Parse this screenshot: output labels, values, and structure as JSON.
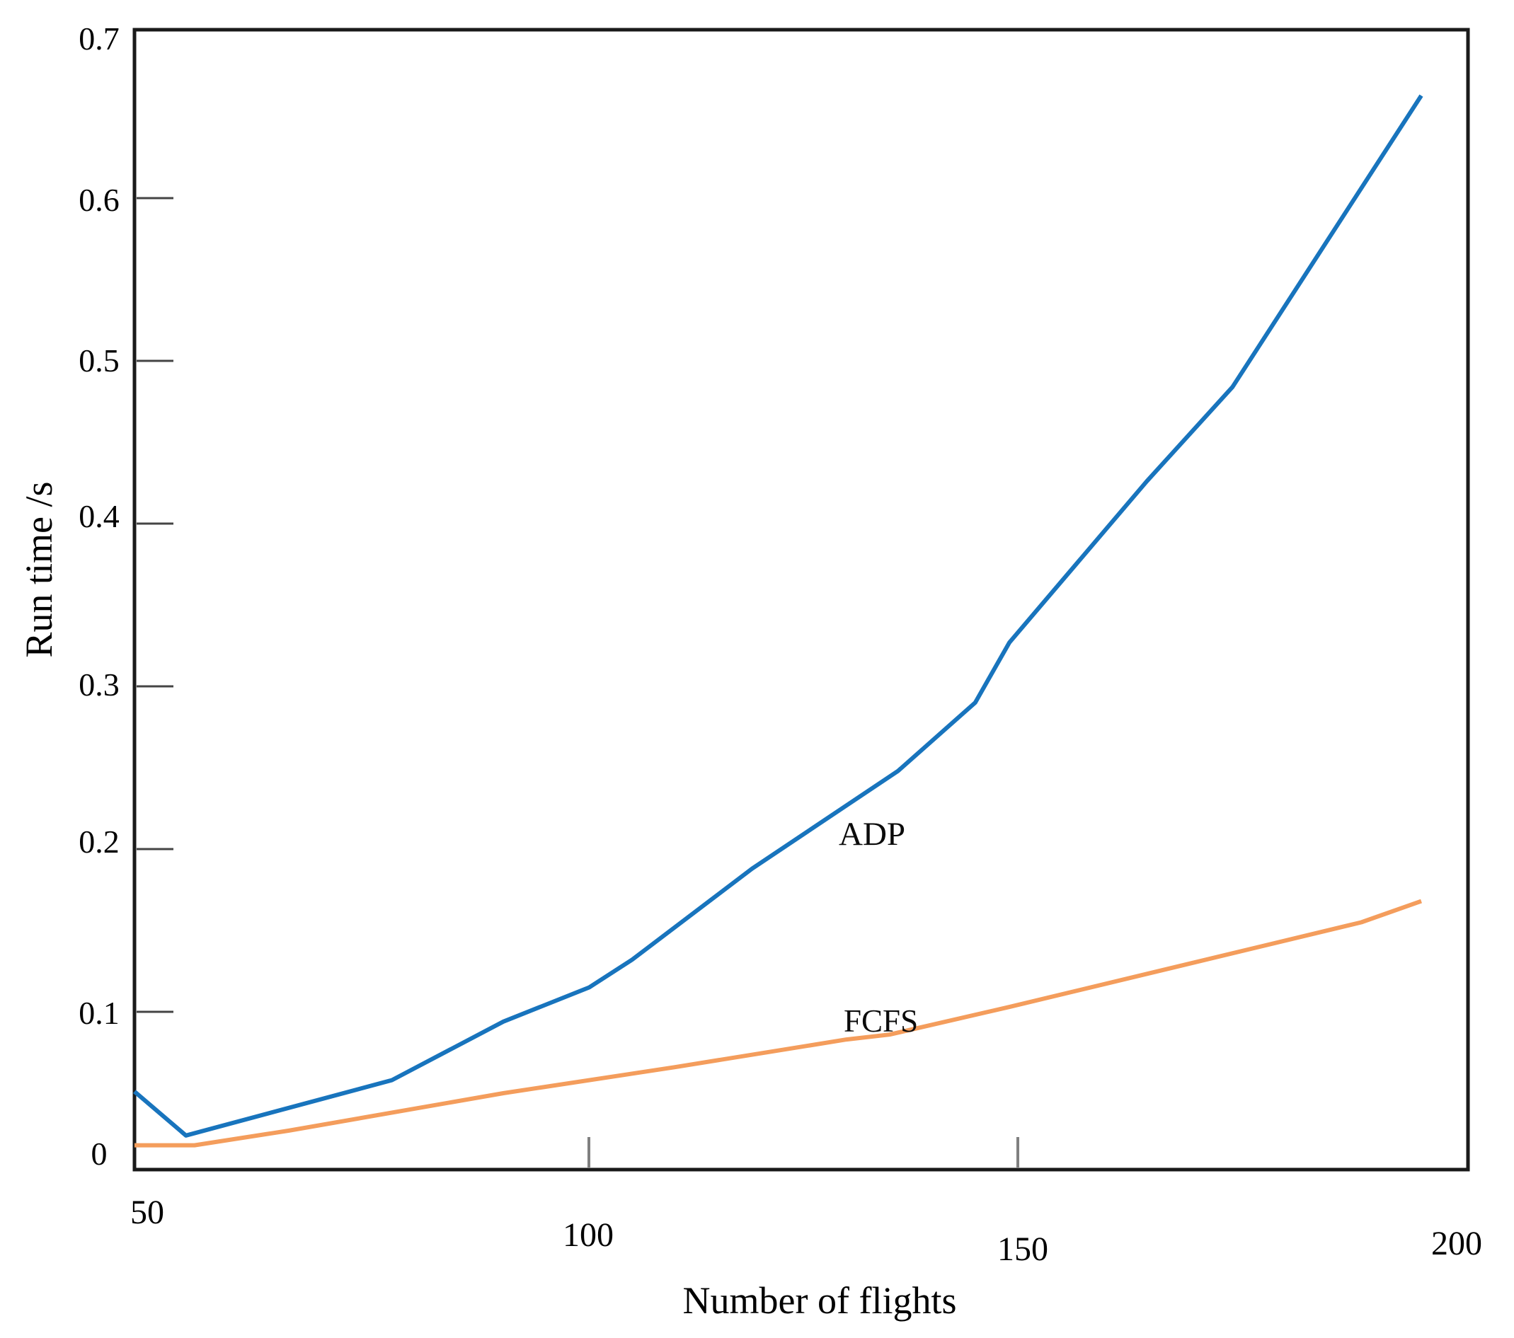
{
  "figure": {
    "background_color": "#ffffff",
    "frame_color": "#1a1a1a",
    "y_tick_color": "#444444",
    "x_tick_color": "#808080"
  },
  "chart_data": {
    "type": "line",
    "title": "",
    "xlabel": "Number of flights",
    "ylabel": "Run time /s",
    "xlim": [
      47,
      202.5
    ],
    "ylim": [
      0,
      0.7
    ],
    "grid": false,
    "legend_position": "inline-labels-on-plot",
    "x_tick_labels": [
      "50",
      "100",
      "150",
      "200"
    ],
    "x_tick_values": [
      50,
      100,
      150,
      200
    ],
    "y_tick_labels": [
      "0.7",
      "0.6",
      "0.5",
      "0.4",
      "0.3",
      "0.2",
      "0.1",
      "0"
    ],
    "y_tick_values": [
      0.7,
      0.6,
      0.5,
      0.4,
      0.3,
      0.2,
      0.1,
      0
    ],
    "series": [
      {
        "name": "ADP",
        "color": "#1874BD",
        "x": [
          47,
          53,
          77,
          90,
          100,
          105,
          119,
          136,
          145,
          149,
          165,
          175,
          197
        ],
        "y": [
          0.051,
          0.024,
          0.058,
          0.094,
          0.115,
          0.132,
          0.188,
          0.248,
          0.29,
          0.327,
          0.426,
          0.484,
          0.663
        ]
      },
      {
        "name": "FCFS",
        "color": "#F49D5C",
        "x": [
          47,
          54,
          65,
          90,
          110,
          130,
          135,
          149,
          190,
          197
        ],
        "y": [
          0.018,
          0.018,
          0.027,
          0.05,
          0.066,
          0.083,
          0.086,
          0.103,
          0.155,
          0.168
        ]
      }
    ]
  }
}
